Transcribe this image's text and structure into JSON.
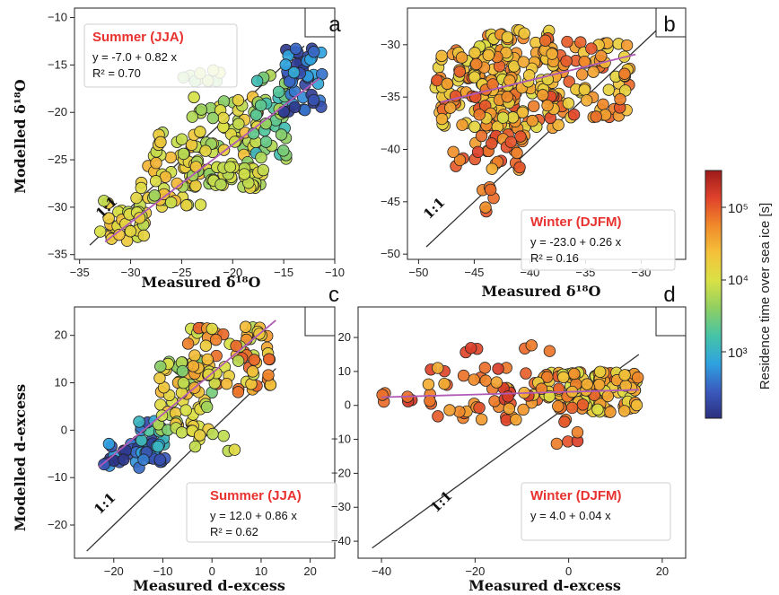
{
  "colorbar": {
    "label": "Residence time over sea ice [s]",
    "ticks": [
      "10³",
      "10⁴",
      "10⁵"
    ],
    "colormap": [
      "#2c2f7e",
      "#3a5bbf",
      "#2fa3e0",
      "#46c4a6",
      "#8fcf62",
      "#d9e145",
      "#f4c23a",
      "#f08a2a",
      "#e0422b",
      "#9e1b1b"
    ]
  },
  "chart_data": [
    {
      "panel": "a",
      "type": "scatter",
      "xlabel": "Measured δ¹⁸O",
      "ylabel": "Modelled  δ¹⁸O",
      "xlim": [
        -35.5,
        -10
      ],
      "ylim": [
        -35.5,
        -9
      ],
      "xticks": [
        -35,
        -30,
        -25,
        -20,
        -15,
        -10
      ],
      "yticks": [
        -35,
        -30,
        -25,
        -20,
        -15,
        -10
      ],
      "one_to_one": [
        -34,
        -13
      ],
      "one_to_one_label": "1:1",
      "legend": {
        "title": "Summer (JJA)",
        "equation": "y = -7.0 + 0.82 x",
        "r2": "R² = 0.70",
        "placement": "top-left"
      },
      "fit": {
        "intercept": -7.0,
        "slope": 0.82,
        "x_range": [
          -32.5,
          -11.5
        ]
      },
      "clusters": [
        {
          "n": 35,
          "x": [
            -33,
            -28.5
          ],
          "y": [
            -34,
            -29
          ],
          "c": [
            0.5,
            0.7
          ]
        },
        {
          "n": 55,
          "x": [
            -29,
            -23
          ],
          "y": [
            -30,
            -22
          ],
          "c": [
            0.45,
            0.7
          ]
        },
        {
          "n": 70,
          "x": [
            -24,
            -17.5
          ],
          "y": [
            -28,
            -18
          ],
          "c": [
            0.42,
            0.68
          ]
        },
        {
          "n": 30,
          "x": [
            -22,
            -17
          ],
          "y": [
            -28,
            -25.5
          ],
          "c": [
            0.48,
            0.62
          ]
        },
        {
          "n": 40,
          "x": [
            -18,
            -14.5
          ],
          "y": [
            -25,
            -16
          ],
          "c": [
            0.25,
            0.5
          ]
        },
        {
          "n": 45,
          "x": [
            -15,
            -11
          ],
          "y": [
            -20,
            -12.5
          ],
          "c": [
            0.02,
            0.25
          ]
        },
        {
          "n": 10,
          "x": [
            -25,
            -21
          ],
          "y": [
            -17,
            -15.5
          ],
          "c": [
            0.4,
            0.55
          ]
        }
      ]
    },
    {
      "panel": "b",
      "type": "scatter",
      "xlabel": "Measured δ¹⁸O",
      "ylabel": "",
      "xlim": [
        -51,
        -26
      ],
      "ylim": [
        -50.5,
        -26.5
      ],
      "xticks": [
        -50,
        -45,
        -40,
        -35,
        -30
      ],
      "yticks": [
        -50,
        -45,
        -40,
        -35,
        -30
      ],
      "one_to_one": [
        -49.3,
        -28
      ],
      "one_to_one_label": "1:1",
      "legend": {
        "title": "Winter (DJFM)",
        "equation": "y = -23.0 + 0.26 x",
        "r2": "R² = 0.16",
        "placement": "bottom-right"
      },
      "fit": {
        "intercept": -23.0,
        "slope": 0.26,
        "x_range": [
          -48,
          -30.5
        ]
      },
      "clusters": [
        {
          "n": 110,
          "x": [
            -48.5,
            -41
          ],
          "y": [
            -38,
            -30.5
          ],
          "c": [
            0.58,
            0.88
          ]
        },
        {
          "n": 120,
          "x": [
            -45,
            -37
          ],
          "y": [
            -38,
            -28.5
          ],
          "c": [
            0.55,
            0.85
          ]
        },
        {
          "n": 80,
          "x": [
            -39,
            -31
          ],
          "y": [
            -37,
            -29.5
          ],
          "c": [
            0.6,
            0.9
          ]
        },
        {
          "n": 30,
          "x": [
            -47,
            -40
          ],
          "y": [
            -42,
            -38.5
          ],
          "c": [
            0.7,
            0.9
          ]
        },
        {
          "n": 6,
          "x": [
            -45,
            -43
          ],
          "y": [
            -46,
            -41.5
          ],
          "c": [
            0.75,
            0.9
          ]
        }
      ]
    },
    {
      "panel": "c",
      "type": "scatter",
      "xlabel": "Measured d-excess",
      "ylabel": "Modelled  d-excess",
      "xlim": [
        -28,
        25
      ],
      "ylim": [
        -27,
        26
      ],
      "xticks": [
        -20,
        -10,
        0,
        10,
        20
      ],
      "yticks": [
        -20,
        -10,
        0,
        10,
        20
      ],
      "one_to_one": [
        -25.5,
        13
      ],
      "one_to_one_label": "1:1",
      "legend": {
        "title": "Summer (JJA)",
        "equation": "y = 12.0 + 0.86 x",
        "r2": "R² = 0.62",
        "placement": "bottom-right"
      },
      "fit": {
        "intercept": 12.0,
        "slope": 0.86,
        "x_range": [
          -23,
          13
        ]
      },
      "clusters": [
        {
          "n": 35,
          "x": [
            -22,
            -10
          ],
          "y": [
            -8,
            -2
          ],
          "c": [
            0.0,
            0.22
          ]
        },
        {
          "n": 25,
          "x": [
            -15,
            -9
          ],
          "y": [
            -7,
            2
          ],
          "c": [
            0.05,
            0.35
          ]
        },
        {
          "n": 60,
          "x": [
            -11,
            0
          ],
          "y": [
            0,
            15
          ],
          "c": [
            0.4,
            0.7
          ]
        },
        {
          "n": 70,
          "x": [
            -5,
            12
          ],
          "y": [
            8,
            22
          ],
          "c": [
            0.5,
            0.85
          ]
        },
        {
          "n": 10,
          "x": [
            -8,
            6
          ],
          "y": [
            -5,
            0
          ],
          "c": [
            0.5,
            0.65
          ]
        }
      ]
    },
    {
      "panel": "d",
      "type": "scatter",
      "xlabel": "Measured d-excess",
      "ylabel": "",
      "xlim": [
        -45,
        25
      ],
      "ylim": [
        -45,
        29
      ],
      "xticks": [
        -40,
        -20,
        0,
        20
      ],
      "yticks": [
        -40,
        -30,
        -20,
        -10,
        0,
        10,
        20
      ],
      "one_to_one": [
        -42,
        15
      ],
      "one_to_one_label": "1:1",
      "legend": {
        "title": "Winter (DJFM)",
        "equation": "y = 4.0 + 0.04 x",
        "r2": "",
        "placement": "bottom-right"
      },
      "fit": {
        "intercept": 4.0,
        "slope": 0.04,
        "x_range": [
          -40,
          15
        ]
      },
      "clusters": [
        {
          "n": 140,
          "x": [
            -8,
            15
          ],
          "y": [
            -2,
            10
          ],
          "c": [
            0.55,
            0.85
          ]
        },
        {
          "n": 45,
          "x": [
            -30,
            -8
          ],
          "y": [
            -5,
            12
          ],
          "c": [
            0.7,
            0.92
          ]
        },
        {
          "n": 8,
          "x": [
            -40,
            -28
          ],
          "y": [
            0,
            4
          ],
          "c": [
            0.8,
            0.92
          ]
        },
        {
          "n": 6,
          "x": [
            -24,
            -4
          ],
          "y": [
            14,
            24
          ],
          "c": [
            0.78,
            0.9
          ]
        },
        {
          "n": 6,
          "x": [
            -6,
            4
          ],
          "y": [
            -12,
            -4
          ],
          "c": [
            0.78,
            0.9
          ]
        }
      ]
    }
  ]
}
